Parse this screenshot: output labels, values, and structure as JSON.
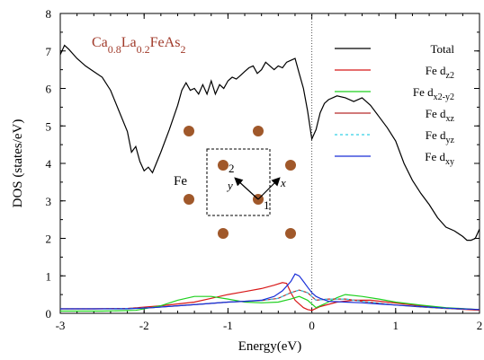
{
  "chart_data": {
    "type": "line",
    "title": "",
    "xlabel": "Energy(eV)",
    "ylabel": "DOS (states/eV)",
    "xlim": [
      -3,
      2
    ],
    "ylim": [
      0,
      8
    ],
    "x_ticks": [
      "-3",
      "-2",
      "-1",
      "0",
      "1",
      "2"
    ],
    "y_ticks": [
      "0",
      "1",
      "2",
      "3",
      "4",
      "5",
      "6",
      "7",
      "8"
    ],
    "grid": false,
    "legend_position": "top-right",
    "fermi_level_line": 0,
    "series": [
      {
        "name": "Total",
        "color": "#000000",
        "dash": "",
        "x": [
          -3.0,
          -2.95,
          -2.9,
          -2.8,
          -2.7,
          -2.6,
          -2.5,
          -2.4,
          -2.3,
          -2.2,
          -2.15,
          -2.1,
          -2.05,
          -2.0,
          -1.95,
          -1.9,
          -1.8,
          -1.7,
          -1.6,
          -1.55,
          -1.5,
          -1.45,
          -1.4,
          -1.35,
          -1.3,
          -1.25,
          -1.2,
          -1.15,
          -1.1,
          -1.05,
          -1.0,
          -0.95,
          -0.9,
          -0.85,
          -0.8,
          -0.75,
          -0.7,
          -0.65,
          -0.6,
          -0.55,
          -0.5,
          -0.45,
          -0.4,
          -0.35,
          -0.3,
          -0.25,
          -0.2,
          -0.15,
          -0.1,
          -0.05,
          0.0,
          0.05,
          0.1,
          0.15,
          0.2,
          0.3,
          0.4,
          0.5,
          0.6,
          0.7,
          0.8,
          0.9,
          1.0,
          1.1,
          1.2,
          1.3,
          1.4,
          1.5,
          1.6,
          1.7,
          1.8,
          1.85,
          1.9,
          1.95,
          2.0
        ],
        "y": [
          6.9,
          7.15,
          7.05,
          6.8,
          6.6,
          6.45,
          6.3,
          5.95,
          5.4,
          4.85,
          4.3,
          4.45,
          4.05,
          3.8,
          3.9,
          3.75,
          4.3,
          4.9,
          5.55,
          5.95,
          6.15,
          5.95,
          6.0,
          5.85,
          6.1,
          5.85,
          6.2,
          5.85,
          6.1,
          6.0,
          6.2,
          6.3,
          6.25,
          6.35,
          6.45,
          6.55,
          6.6,
          6.4,
          6.5,
          6.7,
          6.6,
          6.5,
          6.6,
          6.55,
          6.7,
          6.75,
          6.8,
          6.4,
          6.0,
          5.4,
          4.65,
          4.9,
          5.35,
          5.6,
          5.7,
          5.8,
          5.75,
          5.65,
          5.75,
          5.55,
          5.25,
          4.95,
          4.6,
          4.0,
          3.55,
          3.2,
          2.9,
          2.55,
          2.3,
          2.2,
          2.05,
          1.95,
          1.95,
          2.0,
          2.25
        ]
      },
      {
        "name": "Fe d<sub>z²</sub>",
        "color": "#d81818",
        "dash": "",
        "x": [
          -3.0,
          -2.6,
          -2.2,
          -1.8,
          -1.4,
          -1.2,
          -1.0,
          -0.8,
          -0.6,
          -0.45,
          -0.35,
          -0.3,
          -0.25,
          -0.2,
          -0.15,
          -0.1,
          -0.05,
          0.0,
          0.1,
          0.3,
          0.5,
          0.7,
          0.9,
          1.1,
          1.4,
          1.7,
          2.0
        ],
        "y": [
          0.12,
          0.12,
          0.13,
          0.2,
          0.3,
          0.4,
          0.5,
          0.58,
          0.66,
          0.75,
          0.82,
          0.8,
          0.55,
          0.35,
          0.25,
          0.15,
          0.1,
          0.08,
          0.18,
          0.3,
          0.35,
          0.35,
          0.3,
          0.25,
          0.18,
          0.12,
          0.08
        ]
      },
      {
        "name": "Fe d<sub>x²-y²</sub>",
        "color": "#1fd01f",
        "dash": "",
        "x": [
          -3.0,
          -2.5,
          -2.1,
          -1.8,
          -1.6,
          -1.4,
          -1.2,
          -1.0,
          -0.8,
          -0.6,
          -0.4,
          -0.25,
          -0.15,
          -0.05,
          0.05,
          0.15,
          0.3,
          0.4,
          0.6,
          0.8,
          1.0,
          1.3,
          1.6,
          2.0
        ],
        "y": [
          0.06,
          0.06,
          0.08,
          0.2,
          0.35,
          0.45,
          0.45,
          0.38,
          0.3,
          0.28,
          0.3,
          0.38,
          0.45,
          0.35,
          0.15,
          0.25,
          0.42,
          0.5,
          0.45,
          0.38,
          0.3,
          0.22,
          0.15,
          0.1
        ]
      },
      {
        "name": "Fe d<sub>xz</sub>",
        "color": "#b82a2a",
        "dash": "",
        "x": [
          -3.0,
          -2.6,
          -2.2,
          -1.9,
          -1.6,
          -1.3,
          -1.0,
          -0.8,
          -0.6,
          -0.4,
          -0.25,
          -0.15,
          -0.05,
          0.05,
          0.2,
          0.4,
          0.6,
          0.8,
          1.0,
          1.3,
          1.6,
          2.0
        ],
        "y": [
          0.12,
          0.12,
          0.13,
          0.15,
          0.2,
          0.25,
          0.3,
          0.32,
          0.34,
          0.4,
          0.55,
          0.62,
          0.55,
          0.35,
          0.38,
          0.38,
          0.32,
          0.27,
          0.22,
          0.17,
          0.13,
          0.1
        ]
      },
      {
        "name": "Fe d<sub>yz</sub>",
        "color": "#35d0e8",
        "dash": "3,3",
        "x": [
          -3.0,
          -2.6,
          -2.2,
          -1.9,
          -1.6,
          -1.3,
          -1.0,
          -0.8,
          -0.6,
          -0.4,
          -0.25,
          -0.15,
          -0.05,
          0.05,
          0.2,
          0.4,
          0.6,
          0.8,
          1.0,
          1.3,
          1.6,
          2.0
        ],
        "y": [
          0.12,
          0.12,
          0.13,
          0.15,
          0.2,
          0.25,
          0.3,
          0.32,
          0.34,
          0.4,
          0.55,
          0.62,
          0.55,
          0.35,
          0.38,
          0.38,
          0.32,
          0.27,
          0.22,
          0.17,
          0.13,
          0.1
        ]
      },
      {
        "name": "Fe d<sub>xy</sub>",
        "color": "#1a2fd8",
        "dash": "",
        "x": [
          -3.0,
          -2.6,
          -2.2,
          -1.9,
          -1.6,
          -1.3,
          -1.0,
          -0.8,
          -0.6,
          -0.45,
          -0.35,
          -0.25,
          -0.2,
          -0.15,
          -0.1,
          -0.05,
          0.0,
          0.05,
          0.1,
          0.2,
          0.4,
          0.6,
          0.8,
          1.0,
          1.3,
          1.6,
          2.0
        ],
        "y": [
          0.12,
          0.12,
          0.12,
          0.15,
          0.2,
          0.25,
          0.3,
          0.32,
          0.35,
          0.45,
          0.6,
          0.85,
          1.05,
          1.0,
          0.85,
          0.7,
          0.55,
          0.45,
          0.4,
          0.32,
          0.3,
          0.28,
          0.25,
          0.22,
          0.18,
          0.14,
          0.1
        ]
      }
    ],
    "inset": {
      "formula": "Ca<tspan baseline-shift=\"sub\" font-size=\"12\">0.8</tspan>La<tspan baseline-shift=\"sub\" font-size=\"12\">0.2</tspan>FeAs<tspan baseline-shift=\"sub\" font-size=\"12\">2</tspan>",
      "formula_color": "#a03a2a",
      "atom_color": "#a0582a",
      "element_label": "Fe",
      "site_1": "1",
      "site_2": "2",
      "axis_x": "x",
      "axis_y": "y"
    }
  }
}
